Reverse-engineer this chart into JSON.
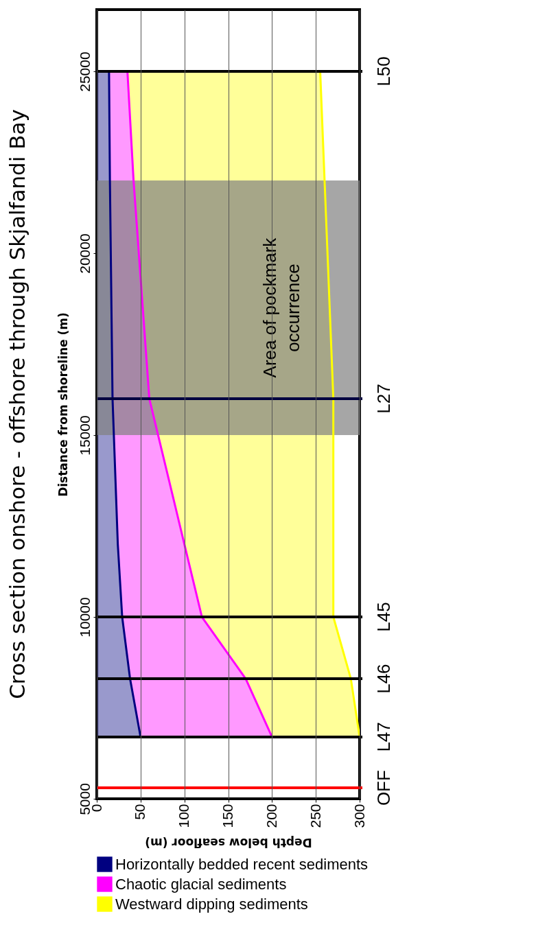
{
  "chart_data": {
    "type": "area",
    "orientation": "horizontal",
    "title": "Cross section onshore - offshore through Skjalfandi Bay",
    "xlabel": "Depth below seafloor (m)",
    "ylabel": "Distance from shoreline (m)",
    "x": [
      6700,
      8300,
      10000,
      12000,
      16000,
      22000,
      25000
    ],
    "series": [
      {
        "name": "Horizontally bedded recent sediments",
        "color": "#000080",
        "values": [
          50,
          38,
          29,
          24,
          18,
          15,
          14
        ]
      },
      {
        "name": "Chaotic glacial sediments",
        "color": "#ff00ff",
        "values": [
          200,
          170,
          120,
          100,
          60,
          42,
          35
        ]
      },
      {
        "name": "Westward dipping sediments",
        "color": "#ffff00",
        "values": [
          300,
          290,
          270,
          270,
          270,
          260,
          255
        ]
      }
    ],
    "xlim": [
      0,
      300
    ],
    "xticks": [
      0,
      50,
      100,
      150,
      200,
      250,
      300
    ],
    "ylim": [
      5000,
      26700
    ],
    "yticks": [
      5000,
      10000,
      15000,
      20000,
      25000
    ],
    "ref_lines": [
      {
        "axis": "y",
        "value": 5300,
        "label": "OFF",
        "color": "#ff0000"
      },
      {
        "axis": "y",
        "value": 6700,
        "label": "L47",
        "color": "#000000"
      },
      {
        "axis": "y",
        "value": 8300,
        "label": "L46",
        "color": "#000000"
      },
      {
        "axis": "y",
        "value": 10000,
        "label": "L45",
        "color": "#000000"
      },
      {
        "axis": "y",
        "value": 16000,
        "label": "L27",
        "color": "#000040"
      },
      {
        "axis": "y",
        "value": 25000,
        "label": "L50",
        "color": "#000000"
      }
    ],
    "bands": [
      {
        "axis": "y",
        "from": 15000,
        "to": 22000,
        "label": "Area of pockmark occurrence",
        "color": "#808080"
      }
    ],
    "grid": "x",
    "legend": "bottom"
  }
}
